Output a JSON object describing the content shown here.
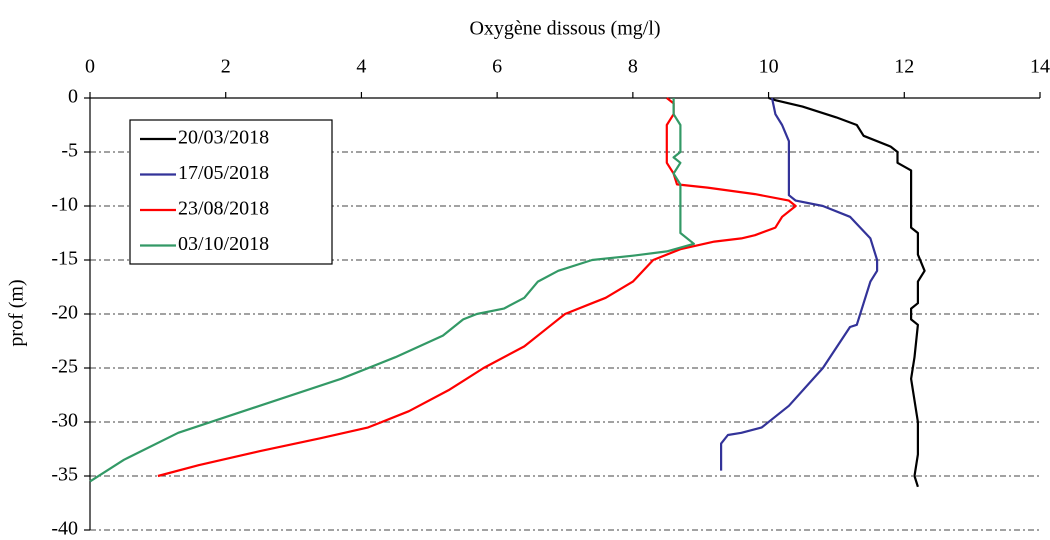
{
  "chart_data": {
    "type": "line",
    "title": "Oxygène dissous (mg/l)",
    "y_label": "prof (m)",
    "xlim": [
      0,
      14
    ],
    "xticks": [
      0,
      2,
      4,
      6,
      8,
      10,
      12,
      14
    ],
    "ylim": [
      -40,
      0
    ],
    "yticks": [
      0,
      -5,
      -10,
      -15,
      -20,
      -25,
      -30,
      -35,
      -40
    ],
    "grid": true,
    "legend": "upper left",
    "series": [
      {
        "name": "20/03/2018",
        "color": "#000000",
        "x": [
          10,
          10.1,
          10.5,
          11,
          11.3,
          11.4,
          11.8,
          11.9,
          11.9,
          12.1,
          12.1,
          12.2,
          12.2,
          12.3,
          12.2,
          12.2,
          12.1,
          12.1,
          12.2,
          12.15,
          12.1,
          12.2,
          12.2,
          12.15,
          12.2
        ],
        "values": [
          0,
          -0.2,
          -0.8,
          -1.8,
          -2.5,
          -3.5,
          -4.5,
          -5,
          -6,
          -6.7,
          -12,
          -12.5,
          -14.5,
          -16,
          -17,
          -19,
          -19.5,
          -20.5,
          -21,
          -24,
          -26,
          -30,
          -33,
          -35,
          -36
        ]
      },
      {
        "name": "17/05/2018",
        "color": "#333399",
        "x": [
          10.05,
          10.1,
          10.2,
          10.3,
          10.3,
          10.3,
          10.4,
          10.8,
          11.2,
          11.5,
          11.6,
          11.6,
          11.5,
          11.4,
          11.3,
          11.2,
          10.8,
          10.3,
          9.9,
          9.6,
          9.4,
          9.3,
          9.3
        ],
        "values": [
          0,
          -1.5,
          -2.5,
          -4,
          -8,
          -9,
          -9.5,
          -10,
          -11,
          -13,
          -15,
          -16,
          -17,
          -19,
          -21,
          -21.2,
          -25,
          -28.5,
          -30.5,
          -31,
          -31.2,
          -32,
          -34.5
        ]
      },
      {
        "name": "23/08/2018",
        "color": "#ff0000",
        "x": [
          8.5,
          8.6,
          8.6,
          8.5,
          8.5,
          8.6,
          8.65,
          9.1,
          9.8,
          10.3,
          10.4,
          10.2,
          10.1,
          9.8,
          9.6,
          9.2,
          8.7,
          8.3,
          8.0,
          7.6,
          7.4,
          7.0,
          6.8,
          6.4,
          5.8,
          5.3,
          4.7,
          4.1,
          3.4,
          2.5,
          1.6,
          1.0
        ],
        "values": [
          0,
          -0.5,
          -1.5,
          -2.5,
          -6,
          -7,
          -8,
          -8.3,
          -8.9,
          -9.5,
          -10,
          -11,
          -12,
          -12.7,
          -13,
          -13.3,
          -14,
          -15,
          -17,
          -18.5,
          -19,
          -20,
          -21,
          -23,
          -25,
          -27,
          -29,
          -30.5,
          -31.5,
          -32.7,
          -34,
          -35
        ]
      },
      {
        "name": "03/10/2018",
        "color": "#339966",
        "x": [
          8.6,
          8.6,
          8.7,
          8.7,
          8.6,
          8.7,
          8.6,
          8.7,
          8.7,
          8.9,
          8.5,
          8.0,
          7.4,
          6.9,
          6.6,
          6.4,
          6.1,
          5.7,
          5.5,
          5.2,
          4.5,
          3.7,
          2.5,
          1.3,
          0.5,
          0
        ],
        "values": [
          0,
          -1.5,
          -2.5,
          -5,
          -5.5,
          -6,
          -7,
          -8,
          -12.5,
          -13.5,
          -14.2,
          -14.6,
          -15,
          -16,
          -17,
          -18.5,
          -19.5,
          -20,
          -20.5,
          -22,
          -24,
          -26,
          -28.5,
          -31,
          -33.5,
          -35.5
        ]
      }
    ]
  }
}
